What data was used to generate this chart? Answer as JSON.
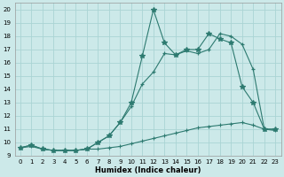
{
  "title": "",
  "xlabel": "Humidex (Indice chaleur)",
  "xlim": [
    -0.5,
    23.5
  ],
  "ylim": [
    9,
    20.5
  ],
  "xticks": [
    0,
    1,
    2,
    3,
    4,
    5,
    6,
    7,
    8,
    9,
    10,
    11,
    12,
    13,
    14,
    15,
    16,
    17,
    18,
    19,
    20,
    21,
    22,
    23
  ],
  "yticks": [
    9,
    10,
    11,
    12,
    13,
    14,
    15,
    16,
    17,
    18,
    19,
    20
  ],
  "bg_color": "#cce9e9",
  "grid_color": "#aad4d4",
  "line_color": "#2d7a70",
  "line1_x": [
    0,
    1,
    2,
    3,
    4,
    5,
    6,
    7,
    8,
    9,
    10,
    11,
    12,
    13,
    14,
    15,
    16,
    17,
    18,
    19,
    20,
    21,
    22,
    23
  ],
  "line1_y": [
    9.6,
    9.8,
    9.5,
    9.4,
    9.4,
    9.4,
    9.5,
    10.0,
    10.5,
    11.5,
    12.7,
    14.4,
    15.3,
    16.7,
    16.6,
    16.9,
    16.7,
    17.0,
    18.2,
    18.0,
    17.4,
    15.5,
    11.0,
    11.0
  ],
  "line2_x": [
    0,
    1,
    2,
    3,
    4,
    5,
    6,
    7,
    8,
    9,
    10,
    11,
    12,
    13,
    14,
    15,
    16,
    17,
    18,
    19,
    20,
    21,
    22,
    23
  ],
  "line2_y": [
    9.6,
    9.8,
    9.5,
    9.4,
    9.4,
    9.4,
    9.5,
    10.0,
    10.5,
    11.5,
    13.0,
    16.5,
    20.0,
    17.5,
    16.6,
    17.0,
    17.0,
    18.2,
    17.8,
    17.5,
    14.2,
    13.0,
    11.0,
    11.0
  ],
  "line3_x": [
    0,
    1,
    2,
    3,
    4,
    5,
    6,
    7,
    8,
    9,
    10,
    11,
    12,
    13,
    14,
    15,
    16,
    17,
    18,
    19,
    20,
    21,
    22,
    23
  ],
  "line3_y": [
    9.6,
    9.7,
    9.5,
    9.4,
    9.4,
    9.4,
    9.5,
    9.5,
    9.6,
    9.7,
    9.9,
    10.1,
    10.3,
    10.5,
    10.7,
    10.9,
    11.1,
    11.2,
    11.3,
    11.4,
    11.5,
    11.3,
    11.0,
    10.9
  ]
}
